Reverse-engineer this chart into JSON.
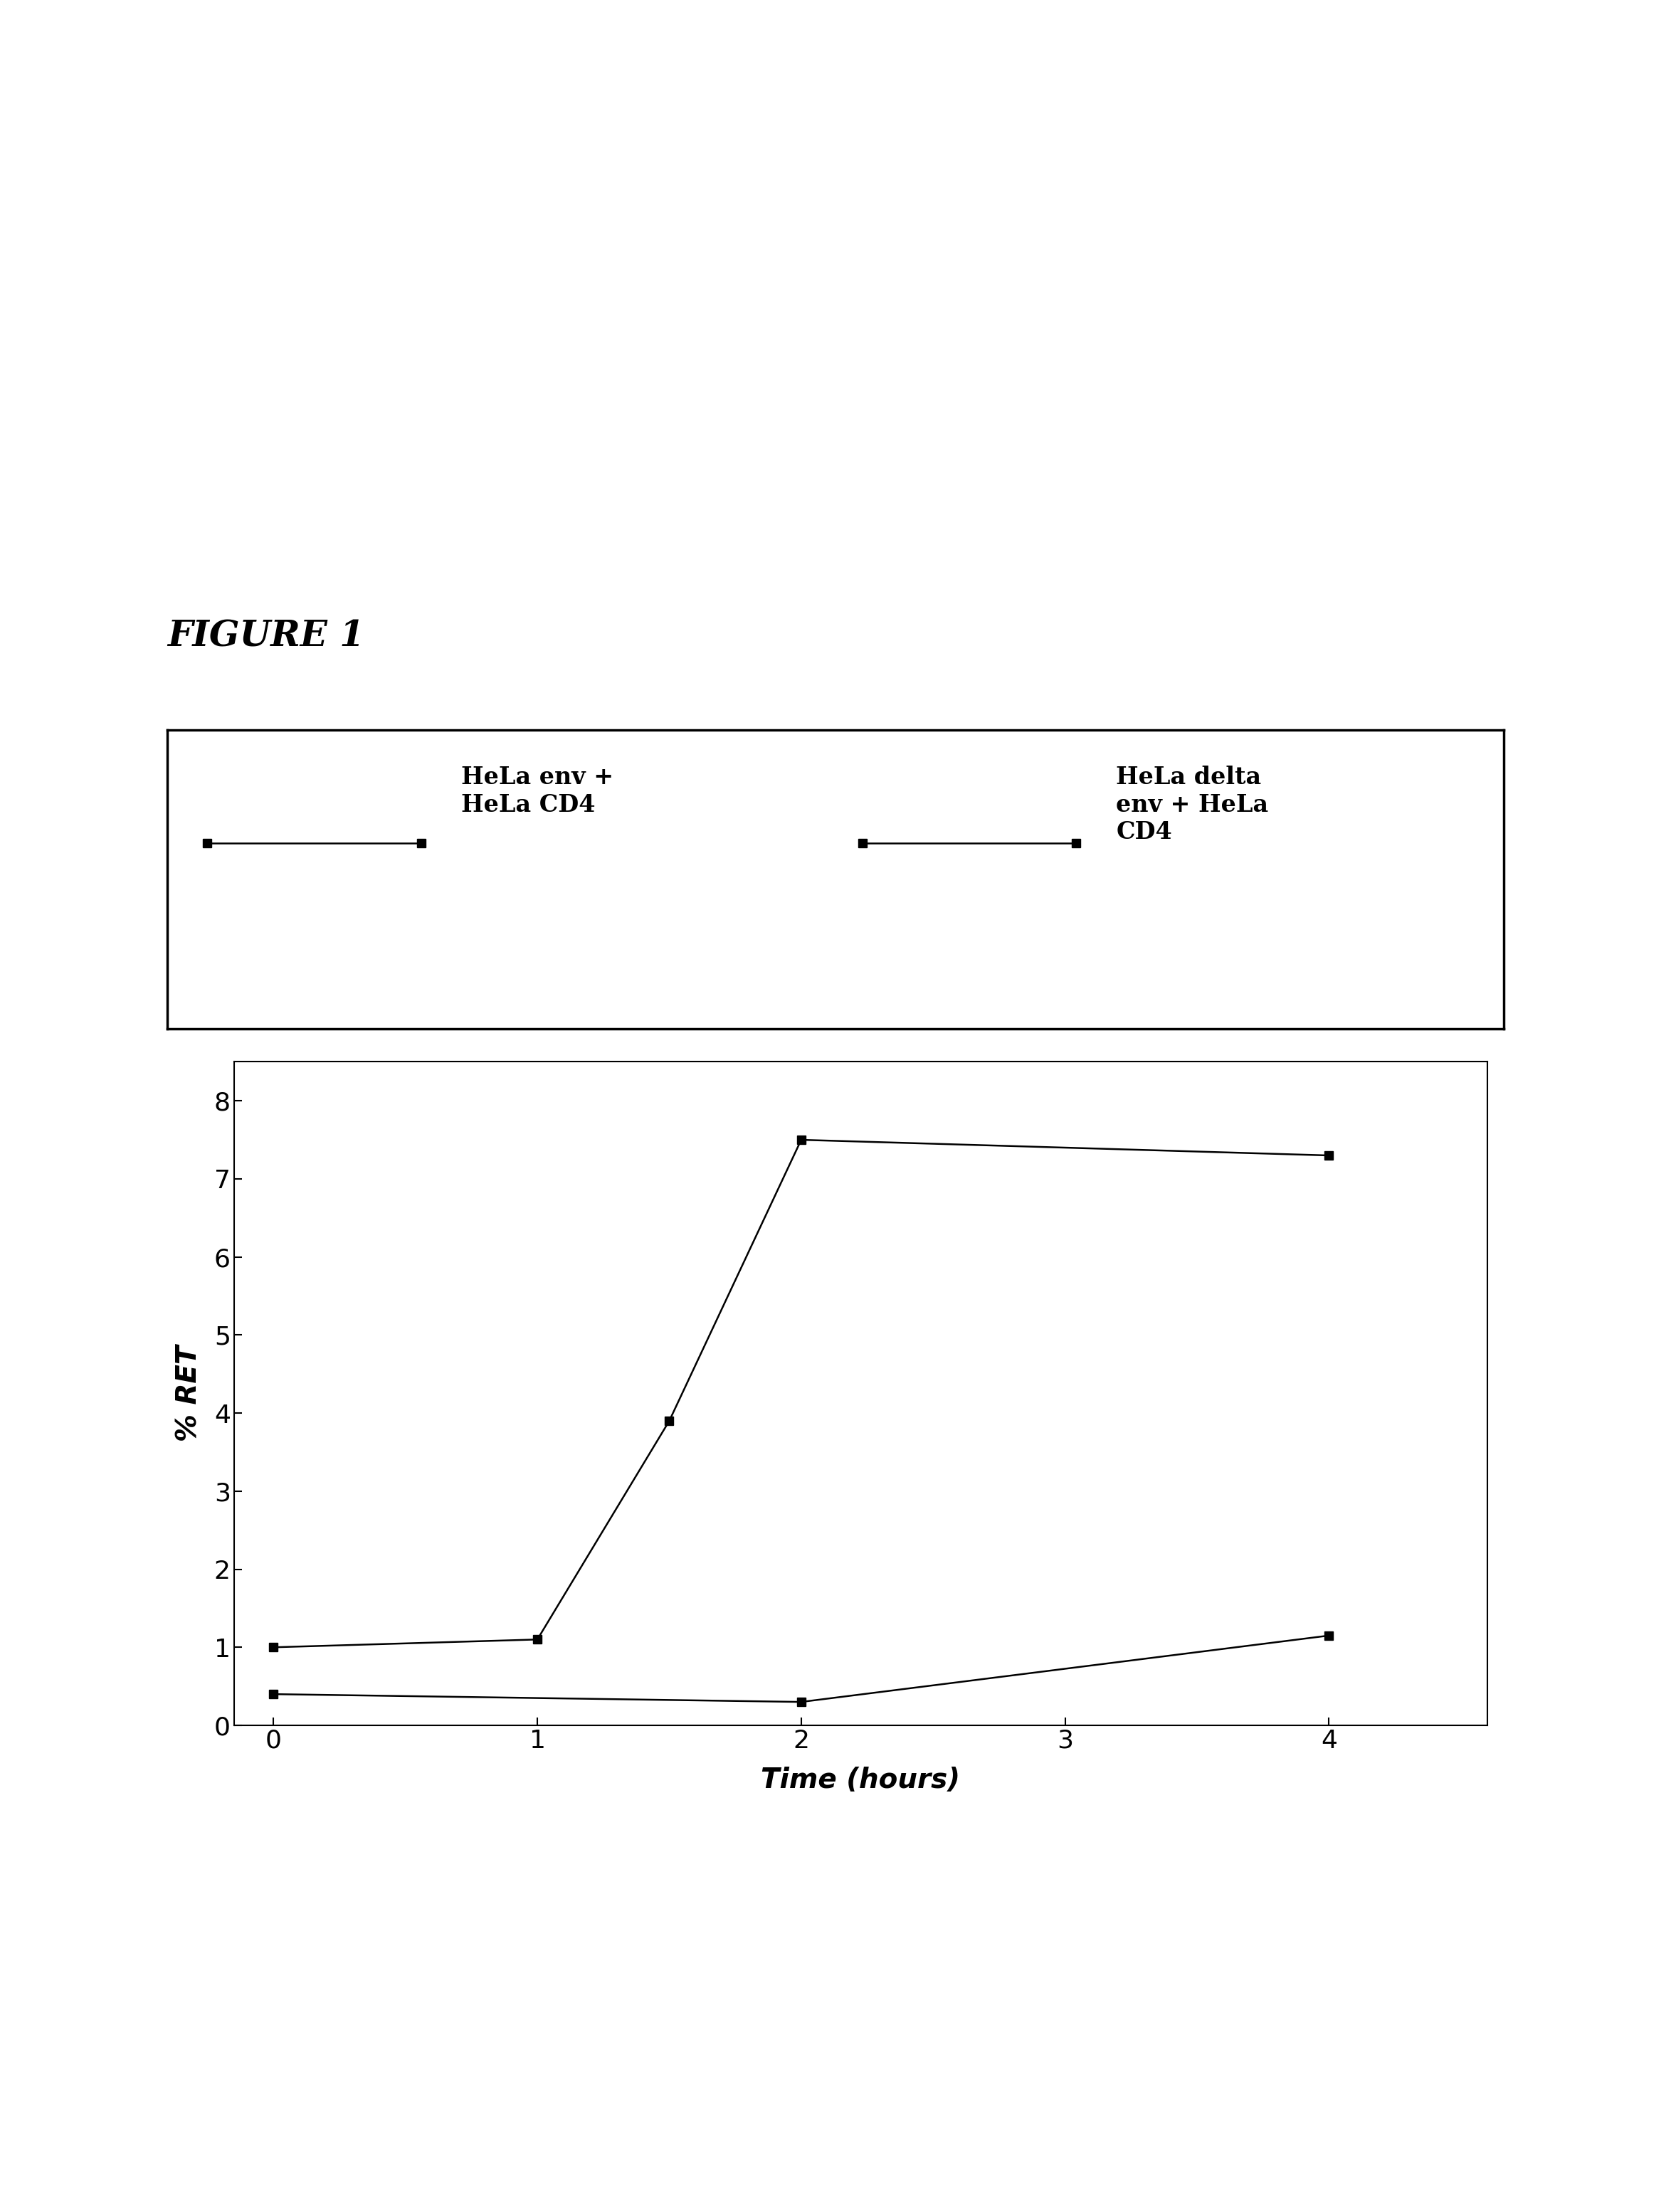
{
  "figure_title": "FIGURE 1",
  "series1_label": "HeLa env +\nHeLa CD4",
  "series2_label": "HeLa delta\nenv + HeLa\nCD4",
  "series1_x": [
    0,
    1,
    1.5,
    2,
    4
  ],
  "series1_y": [
    1.0,
    1.1,
    3.9,
    7.5,
    7.3
  ],
  "series2_x": [
    0,
    2,
    4
  ],
  "series2_y": [
    0.4,
    0.3,
    1.15
  ],
  "xlabel": "Time (hours)",
  "ylabel": "% RET",
  "xlim": [
    -0.15,
    4.6
  ],
  "ylim": [
    0,
    8.5
  ],
  "yticks": [
    0,
    1,
    2,
    3,
    4,
    5,
    6,
    7,
    8
  ],
  "xticks": [
    0,
    1,
    2,
    3,
    4
  ],
  "bg_color": "#ffffff",
  "line_color": "#000000",
  "marker": "s",
  "markersize": 9,
  "linewidth": 1.8,
  "title_fontsize": 36,
  "axis_label_fontsize": 28,
  "tick_fontsize": 26,
  "legend_fontsize": 24
}
